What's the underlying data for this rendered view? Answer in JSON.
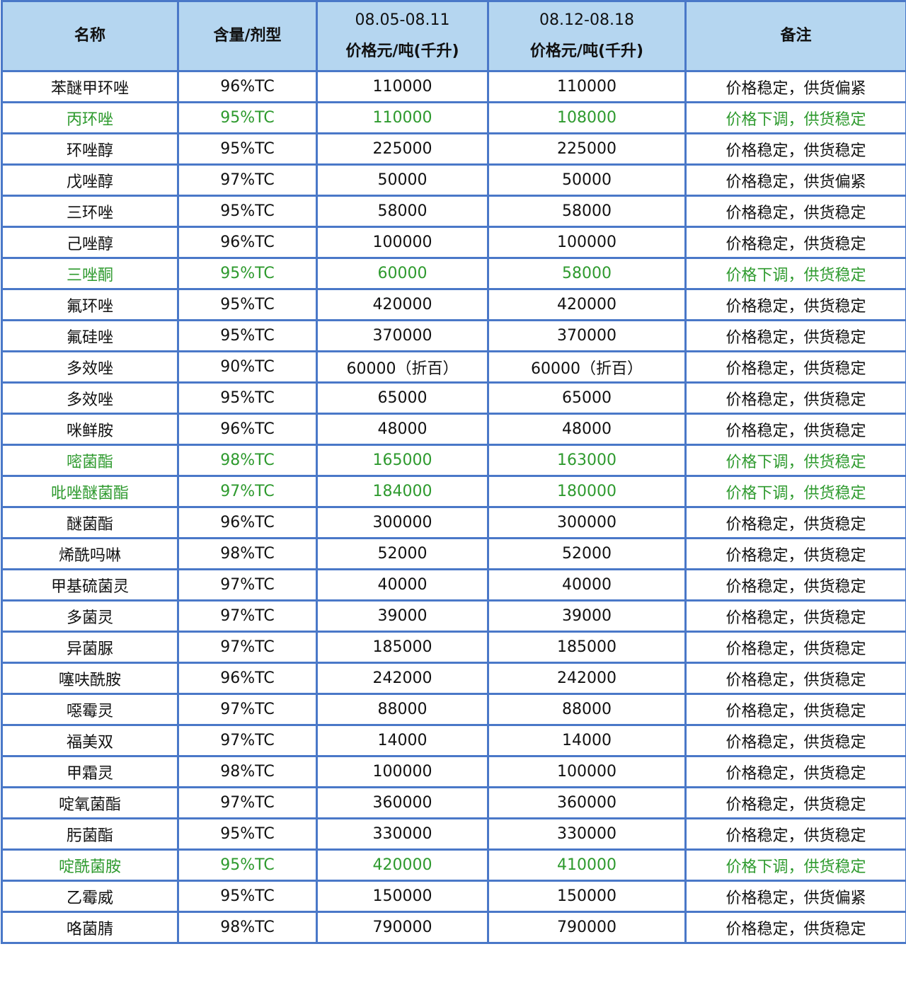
{
  "header": {
    "name": "名称",
    "spec": "含量/剂型",
    "week1_date": "08.05-08.11",
    "week1_unit": "价格元/吨(千升)",
    "week2_date": "08.12-08.18",
    "week2_unit": "价格元/吨(千升)",
    "note": "备注"
  },
  "colors": {
    "border": "#4a78c8",
    "header_bg": "#b5d6f0",
    "price_down_text": "#2e9a2e"
  },
  "rows": [
    {
      "name": "苯醚甲环唑",
      "spec": "96%TC",
      "p1": "110000",
      "p2": "110000",
      "note": "价格稳定，供货偏紧",
      "down": false
    },
    {
      "name": "丙环唑",
      "spec": "95%TC",
      "p1": "110000",
      "p2": "108000",
      "note": "价格下调，供货稳定",
      "down": true
    },
    {
      "name": "环唑醇",
      "spec": "95%TC",
      "p1": "225000",
      "p2": "225000",
      "note": "价格稳定，供货稳定",
      "down": false
    },
    {
      "name": "戊唑醇",
      "spec": "97%TC",
      "p1": "50000",
      "p2": "50000",
      "note": "价格稳定，供货偏紧",
      "down": false
    },
    {
      "name": "三环唑",
      "spec": "95%TC",
      "p1": "58000",
      "p2": "58000",
      "note": "价格稳定，供货稳定",
      "down": false
    },
    {
      "name": "己唑醇",
      "spec": "96%TC",
      "p1": "100000",
      "p2": "100000",
      "note": "价格稳定，供货稳定",
      "down": false
    },
    {
      "name": "三唑酮",
      "spec": "95%TC",
      "p1": "60000",
      "p2": "58000",
      "note": "价格下调，供货稳定",
      "down": true
    },
    {
      "name": "氟环唑",
      "spec": "95%TC",
      "p1": "420000",
      "p2": "420000",
      "note": "价格稳定，供货稳定",
      "down": false
    },
    {
      "name": "氟硅唑",
      "spec": "95%TC",
      "p1": "370000",
      "p2": "370000",
      "note": "价格稳定，供货稳定",
      "down": false
    },
    {
      "name": "多效唑",
      "spec": "90%TC",
      "p1": "60000（折百）",
      "p2": "60000（折百）",
      "note": "价格稳定，供货稳定",
      "down": false
    },
    {
      "name": "多效唑",
      "spec": "95%TC",
      "p1": "65000",
      "p2": "65000",
      "note": "价格稳定，供货稳定",
      "down": false
    },
    {
      "name": "咪鲜胺",
      "spec": "96%TC",
      "p1": "48000",
      "p2": "48000",
      "note": "价格稳定，供货稳定",
      "down": false
    },
    {
      "name": "嘧菌酯",
      "spec": "98%TC",
      "p1": "165000",
      "p2": "163000",
      "note": "价格下调，供货稳定",
      "down": true
    },
    {
      "name": "吡唑醚菌酯",
      "spec": "97%TC",
      "p1": "184000",
      "p2": "180000",
      "note": "价格下调，供货稳定",
      "down": true
    },
    {
      "name": "醚菌酯",
      "spec": "96%TC",
      "p1": "300000",
      "p2": "300000",
      "note": "价格稳定，供货稳定",
      "down": false
    },
    {
      "name": "烯酰吗啉",
      "spec": "98%TC",
      "p1": "52000",
      "p2": "52000",
      "note": "价格稳定，供货稳定",
      "down": false
    },
    {
      "name": "甲基硫菌灵",
      "spec": "97%TC",
      "p1": "40000",
      "p2": "40000",
      "note": "价格稳定，供货稳定",
      "down": false
    },
    {
      "name": "多菌灵",
      "spec": "97%TC",
      "p1": "39000",
      "p2": "39000",
      "note": "价格稳定，供货稳定",
      "down": false
    },
    {
      "name": "异菌脲",
      "spec": "97%TC",
      "p1": "185000",
      "p2": "185000",
      "note": "价格稳定，供货稳定",
      "down": false
    },
    {
      "name": "噻呋酰胺",
      "spec": "96%TC",
      "p1": "242000",
      "p2": "242000",
      "note": "价格稳定，供货稳定",
      "down": false
    },
    {
      "name": "噁霉灵",
      "spec": "97%TC",
      "p1": "88000",
      "p2": "88000",
      "note": "价格稳定，供货稳定",
      "down": false
    },
    {
      "name": "福美双",
      "spec": "97%TC",
      "p1": "14000",
      "p2": "14000",
      "note": "价格稳定，供货稳定",
      "down": false
    },
    {
      "name": "甲霜灵",
      "spec": "98%TC",
      "p1": "100000",
      "p2": "100000",
      "note": "价格稳定，供货稳定",
      "down": false
    },
    {
      "name": "啶氧菌酯",
      "spec": "97%TC",
      "p1": "360000",
      "p2": "360000",
      "note": "价格稳定，供货稳定",
      "down": false
    },
    {
      "name": "肟菌酯",
      "spec": "95%TC",
      "p1": "330000",
      "p2": "330000",
      "note": "价格稳定，供货稳定",
      "down": false
    },
    {
      "name": "啶酰菌胺",
      "spec": "95%TC",
      "p1": "420000",
      "p2": "410000",
      "note": "价格下调，供货稳定",
      "down": true
    },
    {
      "name": "乙霉威",
      "spec": "95%TC",
      "p1": "150000",
      "p2": "150000",
      "note": "价格稳定，供货偏紧",
      "down": false
    },
    {
      "name": "咯菌腈",
      "spec": "98%TC",
      "p1": "790000",
      "p2": "790000",
      "note": "价格稳定，供货稳定",
      "down": false
    }
  ]
}
